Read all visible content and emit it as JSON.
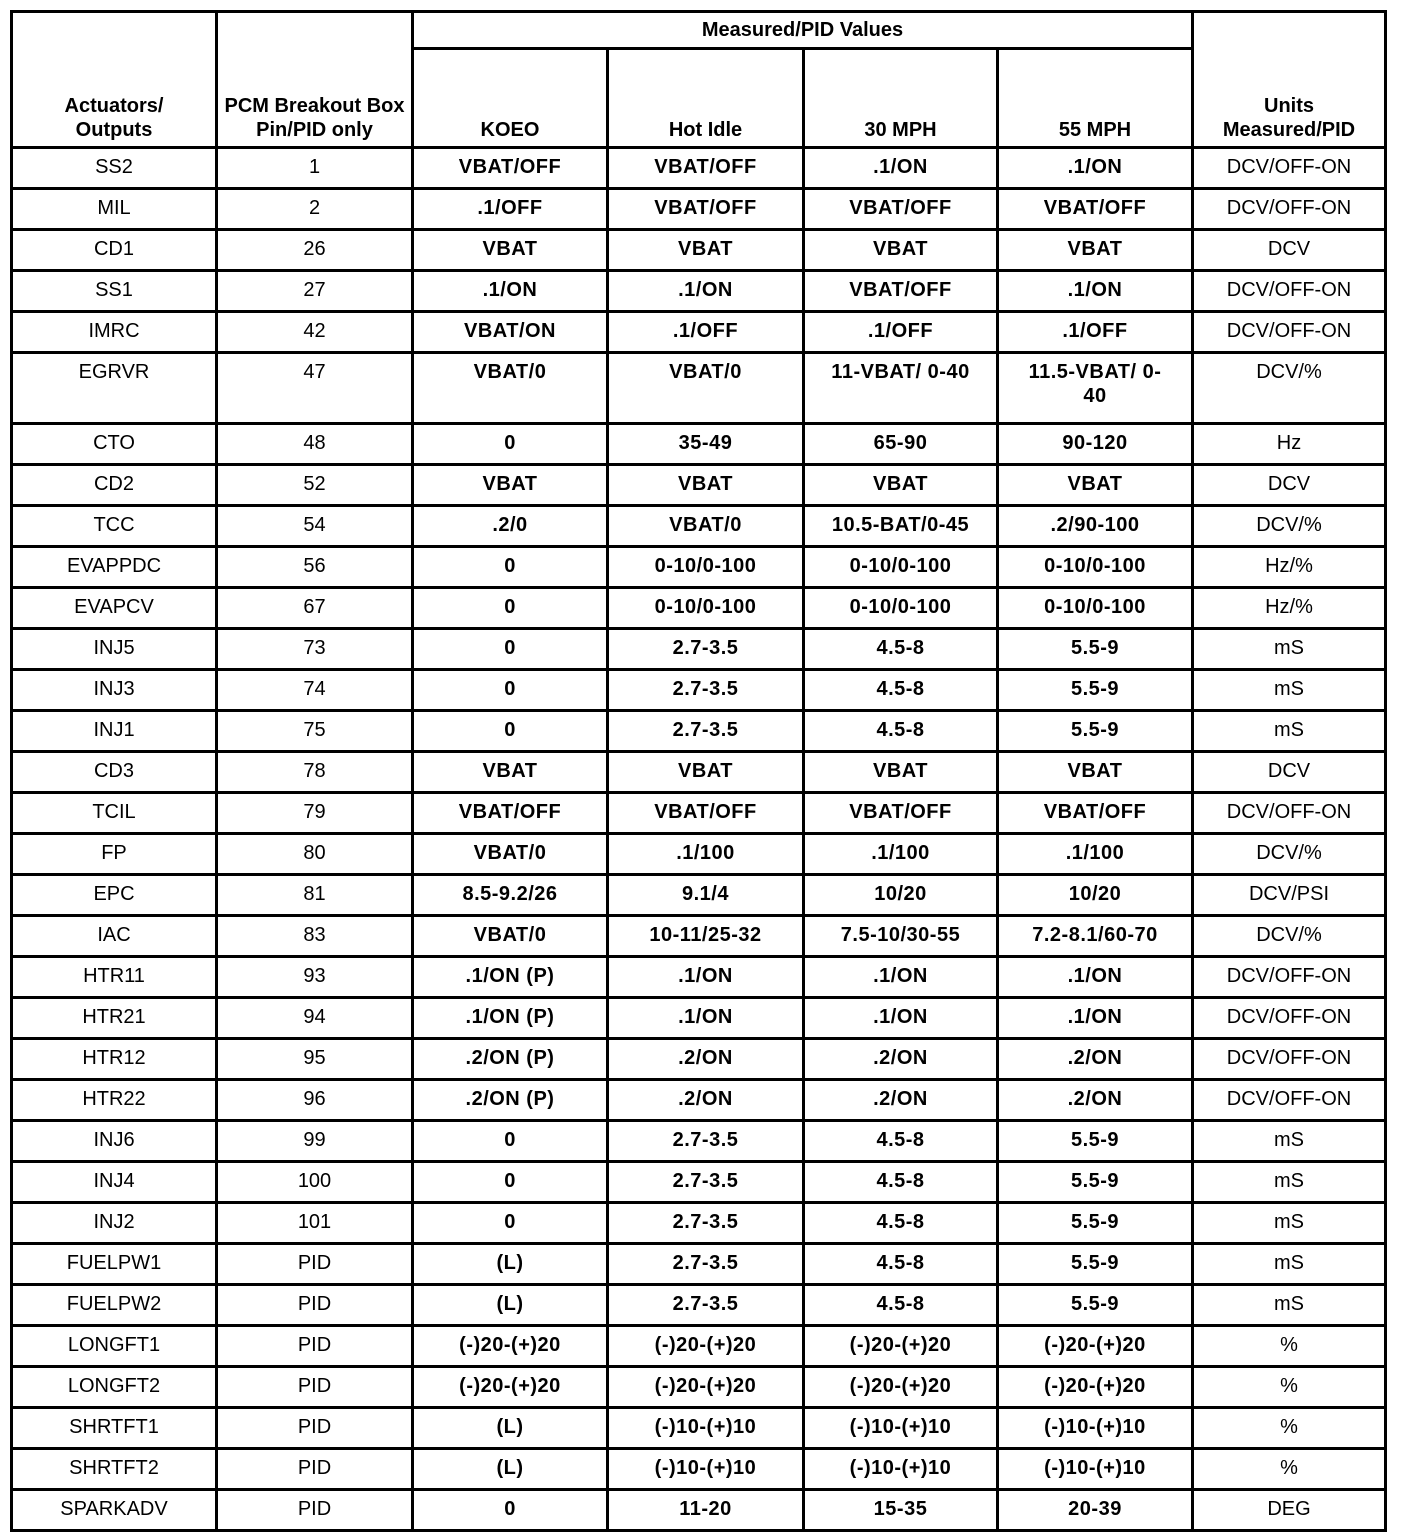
{
  "headers": {
    "actuators": "Actuators/ Outputs",
    "pin": "PCM Breakout Box Pin/PID only",
    "measured_group": "Measured/PID Values",
    "koeo": "KOEO",
    "hot_idle": "Hot Idle",
    "mph30": "30 MPH",
    "mph55": "55 MPH",
    "units": "Units Measured/PID"
  },
  "rows": [
    [
      "SS2",
      "1",
      "VBAT/OFF",
      "VBAT/OFF",
      ".1/ON",
      ".1/ON",
      "DCV/OFF-ON"
    ],
    [
      "MIL",
      "2",
      ".1/OFF",
      "VBAT/OFF",
      "VBAT/OFF",
      "VBAT/OFF",
      "DCV/OFF-ON"
    ],
    [
      "CD1",
      "26",
      "VBAT",
      "VBAT",
      "VBAT",
      "VBAT",
      "DCV"
    ],
    [
      "SS1",
      "27",
      ".1/ON",
      ".1/ON",
      "VBAT/OFF",
      ".1/ON",
      "DCV/OFF-ON"
    ],
    [
      "IMRC",
      "42",
      "VBAT/ON",
      ".1/OFF",
      ".1/OFF",
      ".1/OFF",
      "DCV/OFF-ON"
    ],
    [
      "EGRVR",
      "47",
      "VBAT/0",
      "VBAT/0",
      "11-VBAT/ 0-40",
      "11.5-VBAT/ 0-40",
      "DCV/%"
    ],
    [
      "CTO",
      "48",
      "0",
      "35-49",
      "65-90",
      "90-120",
      "Hz"
    ],
    [
      "CD2",
      "52",
      "VBAT",
      "VBAT",
      "VBAT",
      "VBAT",
      "DCV"
    ],
    [
      "TCC",
      "54",
      ".2/0",
      "VBAT/0",
      "10.5-BAT/0-45",
      ".2/90-100",
      "DCV/%"
    ],
    [
      "EVAPPDC",
      "56",
      "0",
      "0-10/0-100",
      "0-10/0-100",
      "0-10/0-100",
      "Hz/%"
    ],
    [
      "EVAPCV",
      "67",
      "0",
      "0-10/0-100",
      "0-10/0-100",
      "0-10/0-100",
      "Hz/%"
    ],
    [
      "INJ5",
      "73",
      "0",
      "2.7-3.5",
      "4.5-8",
      "5.5-9",
      "mS"
    ],
    [
      "INJ3",
      "74",
      "0",
      "2.7-3.5",
      "4.5-8",
      "5.5-9",
      "mS"
    ],
    [
      "INJ1",
      "75",
      "0",
      "2.7-3.5",
      "4.5-8",
      "5.5-9",
      "mS"
    ],
    [
      "CD3",
      "78",
      "VBAT",
      "VBAT",
      "VBAT",
      "VBAT",
      "DCV"
    ],
    [
      "TCIL",
      "79",
      "VBAT/OFF",
      "VBAT/OFF",
      "VBAT/OFF",
      "VBAT/OFF",
      "DCV/OFF-ON"
    ],
    [
      "FP",
      "80",
      "VBAT/0",
      ".1/100",
      ".1/100",
      ".1/100",
      "DCV/%"
    ],
    [
      "EPC",
      "81",
      "8.5-9.2/26",
      "9.1/4",
      "10/20",
      "10/20",
      "DCV/PSI"
    ],
    [
      "IAC",
      "83",
      "VBAT/0",
      "10-11/25-32",
      "7.5-10/30-55",
      "7.2-8.1/60-70",
      "DCV/%"
    ],
    [
      "HTR11",
      "93",
      ".1/ON (P)",
      ".1/ON",
      ".1/ON",
      ".1/ON",
      "DCV/OFF-ON"
    ],
    [
      "HTR21",
      "94",
      ".1/ON (P)",
      ".1/ON",
      ".1/ON",
      ".1/ON",
      "DCV/OFF-ON"
    ],
    [
      "HTR12",
      "95",
      ".2/ON (P)",
      ".2/ON",
      ".2/ON",
      ".2/ON",
      "DCV/OFF-ON"
    ],
    [
      "HTR22",
      "96",
      ".2/ON (P)",
      ".2/ON",
      ".2/ON",
      ".2/ON",
      "DCV/OFF-ON"
    ],
    [
      "INJ6",
      "99",
      "0",
      "2.7-3.5",
      "4.5-8",
      "5.5-9",
      "mS"
    ],
    [
      "INJ4",
      "100",
      "0",
      "2.7-3.5",
      "4.5-8",
      "5.5-9",
      "mS"
    ],
    [
      "INJ2",
      "101",
      "0",
      "2.7-3.5",
      "4.5-8",
      "5.5-9",
      "mS"
    ],
    [
      "FUELPW1",
      "PID",
      "(L)",
      "2.7-3.5",
      "4.5-8",
      "5.5-9",
      "mS"
    ],
    [
      "FUELPW2",
      "PID",
      "(L)",
      "2.7-3.5",
      "4.5-8",
      "5.5-9",
      "mS"
    ],
    [
      "LONGFT1",
      "PID",
      "(-)20-(+)20",
      "(-)20-(+)20",
      "(-)20-(+)20",
      "(-)20-(+)20",
      "%"
    ],
    [
      "LONGFT2",
      "PID",
      "(-)20-(+)20",
      "(-)20-(+)20",
      "(-)20-(+)20",
      "(-)20-(+)20",
      "%"
    ],
    [
      "SHRTFT1",
      "PID",
      "(L)",
      "(-)10-(+)10",
      "(-)10-(+)10",
      "(-)10-(+)10",
      "%"
    ],
    [
      "SHRTFT2",
      "PID",
      "(L)",
      "(-)10-(+)10",
      "(-)10-(+)10",
      "(-)10-(+)10",
      "%"
    ],
    [
      "SPARKADV",
      "PID",
      "0",
      "11-20",
      "15-35",
      "20-39",
      "DEG"
    ]
  ]
}
